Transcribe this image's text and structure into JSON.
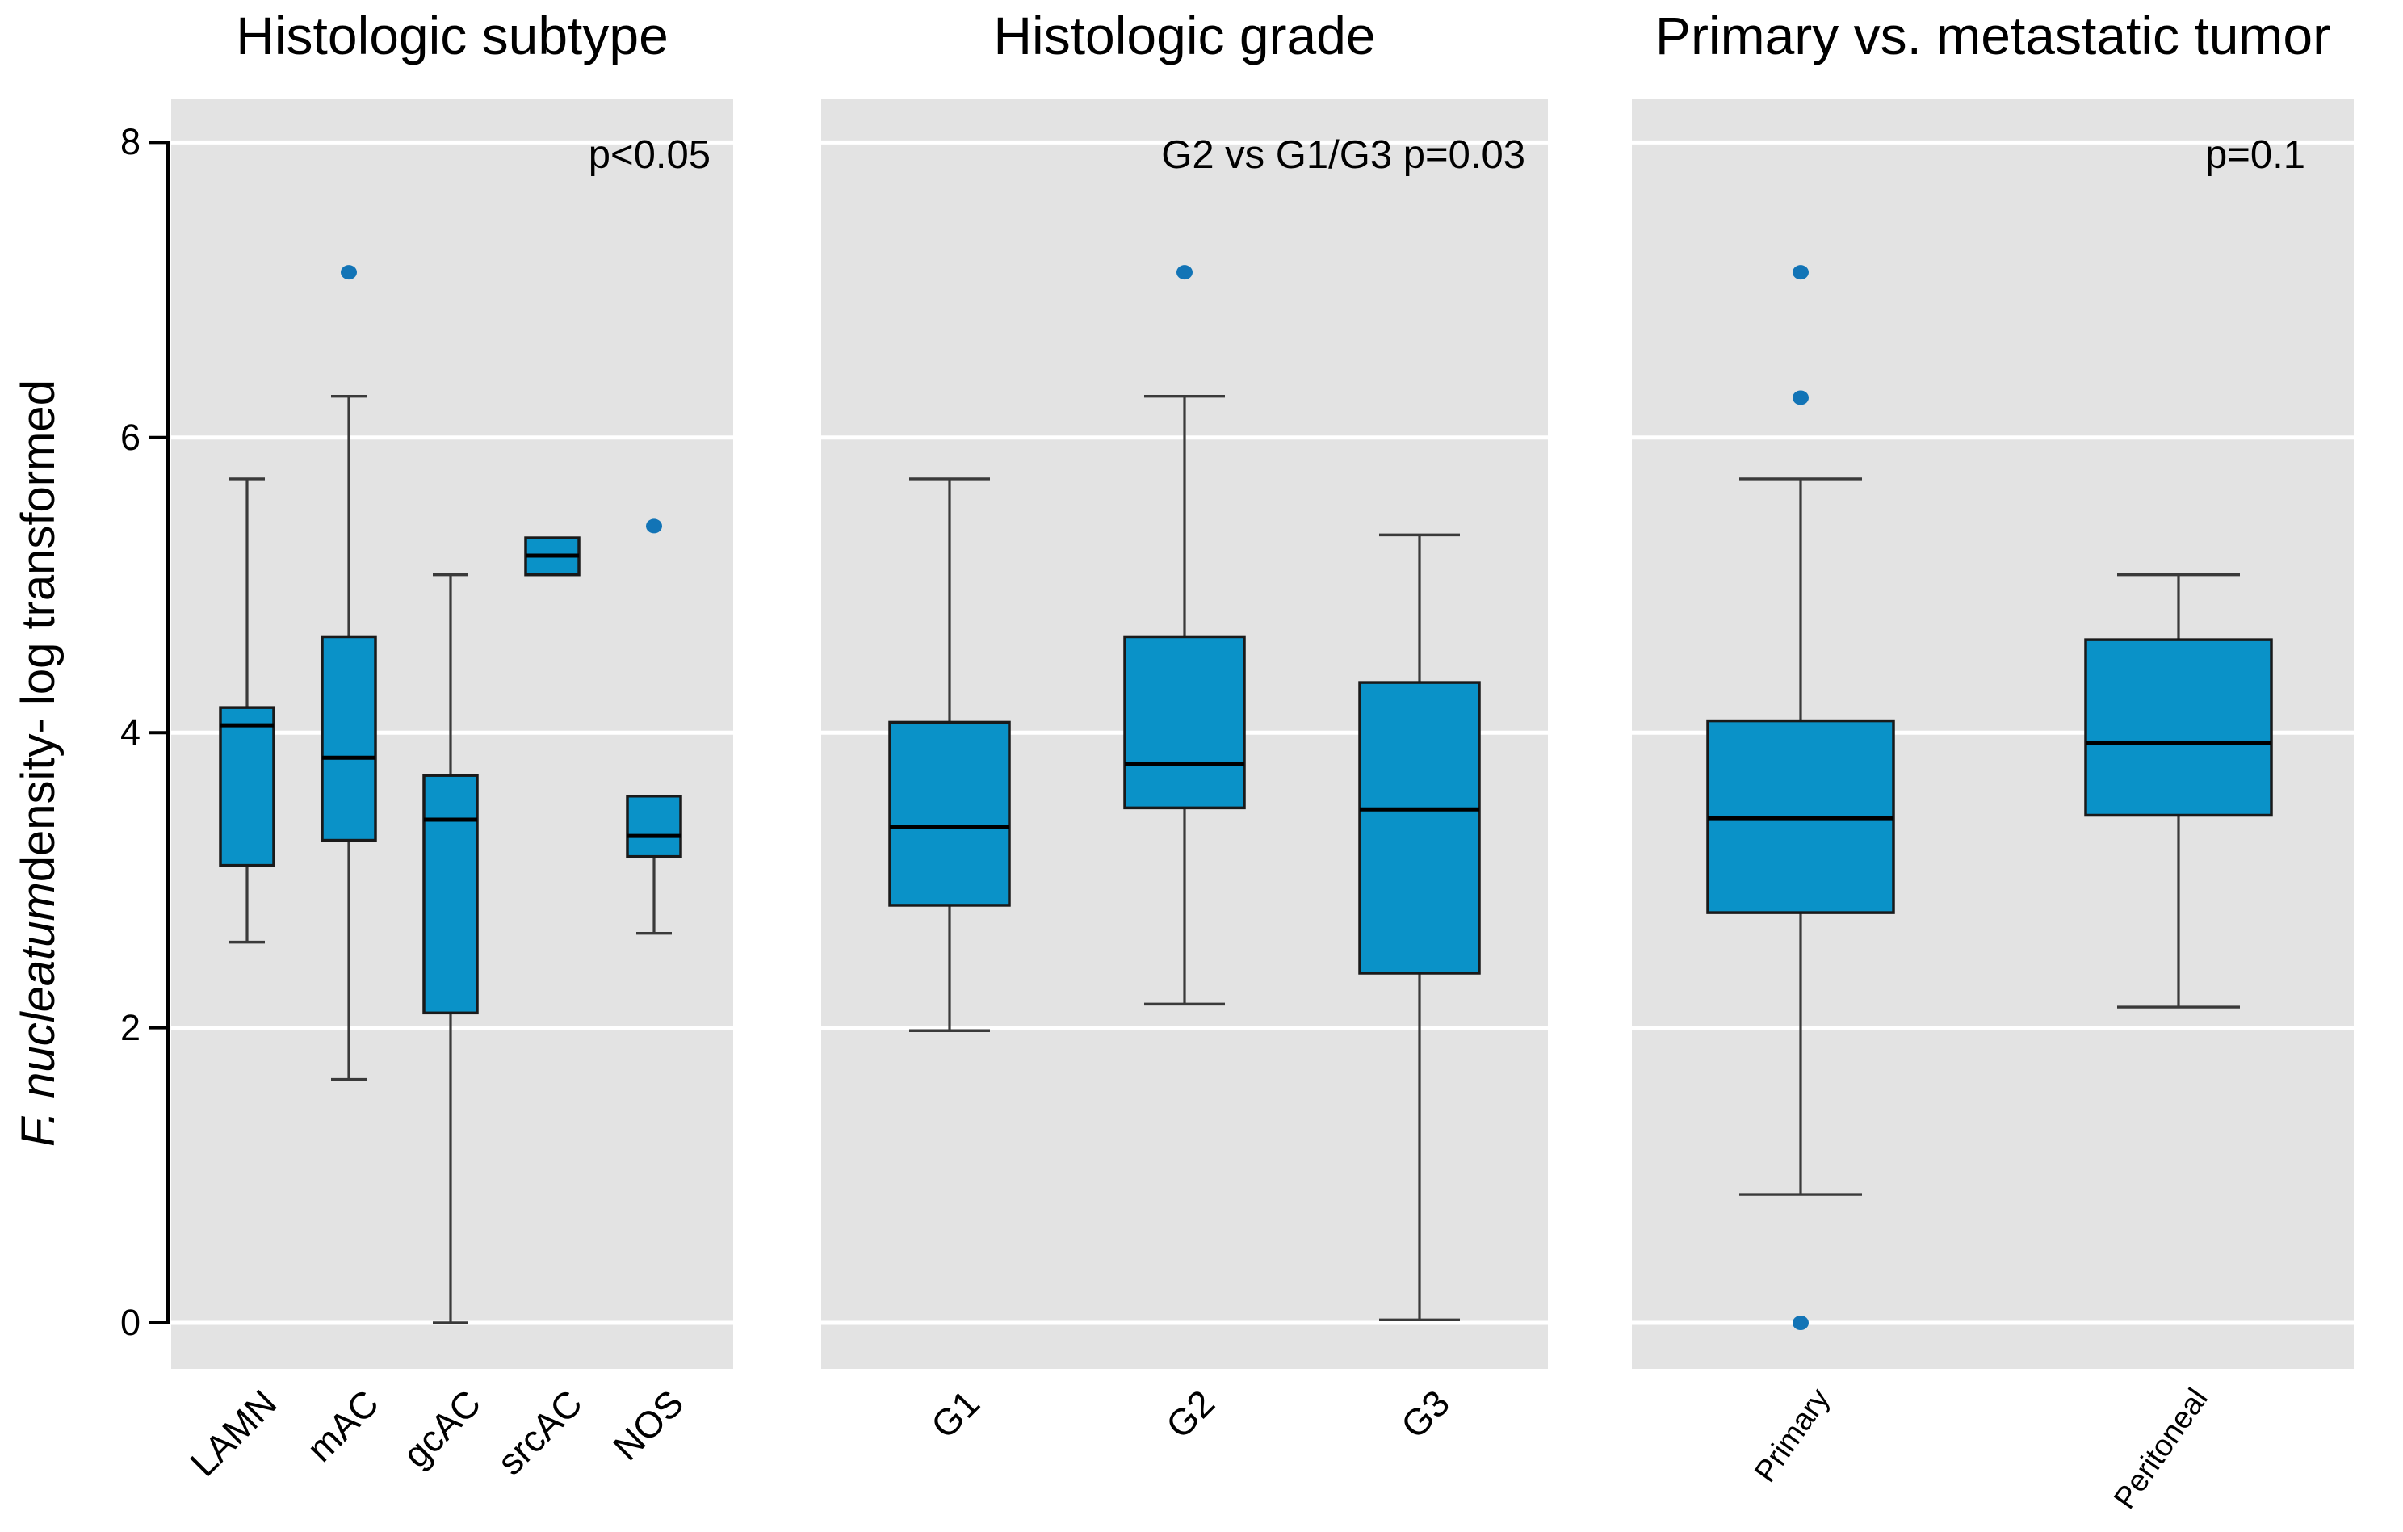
{
  "figure": {
    "background": "#ffffff",
    "panel_background": "#e3e3e3",
    "grid_color": "#ffffff",
    "box_fill": "#0a92c8",
    "box_stroke": "#1a1a1a",
    "whisker_color": "#3a3a3a",
    "median_color": "#000000",
    "outlier_color": "#1274b6",
    "text_color": "#000000"
  },
  "y_axis": {
    "label_italic": "F. nucleatum",
    "label_rest": "density- log transformed",
    "ticks": [
      0,
      2,
      4,
      6,
      8
    ],
    "tick_labels": [
      "0",
      "2",
      "4",
      "6",
      "8"
    ]
  },
  "chart_data": {
    "type": "boxplot",
    "ylabel": "F. nucleatum density- log transformed",
    "ylim": [
      -0.31,
      8.3
    ],
    "grid": "horizontal-major",
    "legend": "none",
    "panels": [
      {
        "title": "Histologic subtype",
        "annotation": "p<0.05",
        "categories": [
          "LAMN",
          "mAC",
          "gcAC",
          "srcAC",
          "NOS"
        ],
        "boxes": [
          {
            "category": "LAMN",
            "min": 2.58,
            "q1": 3.1,
            "median": 4.05,
            "q3": 4.17,
            "max": 5.72,
            "outliers": []
          },
          {
            "category": "mAC",
            "min": 1.65,
            "q1": 3.27,
            "median": 3.83,
            "q3": 4.65,
            "max": 6.28,
            "outliers": [
              7.12
            ]
          },
          {
            "category": "gcAC",
            "min": 0.0,
            "q1": 2.1,
            "median": 3.41,
            "q3": 3.71,
            "max": 5.07,
            "outliers": []
          },
          {
            "category": "srcAC",
            "min": 5.07,
            "q1": 5.07,
            "median": 5.2,
            "q3": 5.32,
            "max": 5.32,
            "outliers": []
          },
          {
            "category": "NOS",
            "min": 2.64,
            "q1": 3.16,
            "median": 3.3,
            "q3": 3.57,
            "max": 3.57,
            "outliers": [
              5.4
            ]
          }
        ]
      },
      {
        "title": "Histologic grade",
        "annotation": "G2 vs G1/G3 p=0.03",
        "categories": [
          "G1",
          "G2",
          "G3"
        ],
        "boxes": [
          {
            "category": "G1",
            "min": 1.98,
            "q1": 2.83,
            "median": 3.36,
            "q3": 4.07,
            "max": 5.72,
            "outliers": []
          },
          {
            "category": "G2",
            "min": 2.16,
            "q1": 3.49,
            "median": 3.79,
            "q3": 4.65,
            "max": 6.28,
            "outliers": [
              7.12
            ]
          },
          {
            "category": "G3",
            "min": 0.02,
            "q1": 2.37,
            "median": 3.48,
            "q3": 4.34,
            "max": 5.34,
            "outliers": []
          }
        ]
      },
      {
        "title": "Primary vs. metastatic tumor",
        "annotation": "p=0.1",
        "categories": [
          "Primary",
          "Peritoneal"
        ],
        "boxes": [
          {
            "category": "Primary",
            "min": 0.87,
            "q1": 2.78,
            "median": 3.42,
            "q3": 4.08,
            "max": 5.72,
            "outliers": [
              7.12,
              6.27,
              0.0
            ]
          },
          {
            "category": "Peritoneal",
            "min": 2.14,
            "q1": 3.44,
            "median": 3.93,
            "q3": 4.63,
            "max": 5.07,
            "outliers": []
          }
        ]
      }
    ]
  }
}
